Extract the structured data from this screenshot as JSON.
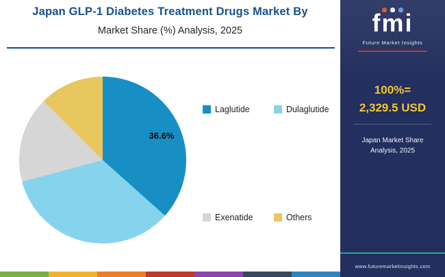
{
  "header": {
    "title_line1": "Japan GLP-1 Diabetes Treatment Drugs Market By",
    "title_line2": "Market Share (%) Analysis, 2025"
  },
  "chart_data": {
    "type": "pie",
    "title": "Japan GLP-1 Diabetes Treatment Drugs Market By Market Share (%) Analysis, 2025",
    "slices": [
      {
        "label": "Laglutide",
        "value": 36.6,
        "color": "#188fc4",
        "value_label": "36.6%"
      },
      {
        "label": "Dulaglutide",
        "value": 34.2,
        "color": "#86d3ee",
        "value_label": ""
      },
      {
        "label": "Exenatide",
        "value": 16.7,
        "color": "#d6d6d6",
        "value_label": ""
      },
      {
        "label": "Others",
        "value": 12.5,
        "color": "#e9c75f",
        "value_label": ""
      }
    ],
    "start_angle_deg": 0,
    "direction": "clockwise",
    "legend_position": "right",
    "shown_data_labels": [
      "36.6%"
    ]
  },
  "sidebar": {
    "logo_text": "fmi",
    "logo_subtitle": "Future Market Insights",
    "stat_line1": "100%=",
    "stat_line2": "2,329.5 USD",
    "caption_line1": "Japan Market Share",
    "caption_line2": "Analysis, 2025",
    "footer_url": "www.futuremarketinsights.com",
    "bg_color": "#232f5e",
    "accent_yellow": "#f6c62d",
    "accent_red": "#c0392b",
    "accent_teal": "#2fa39a"
  },
  "colors": {
    "title_blue": "#15518f",
    "rule_blue": "#1b4a8a",
    "stripe": [
      "#76b043",
      "#f3b229",
      "#ef7d23",
      "#c0392b",
      "#8e44ad",
      "#34495e",
      "#2e86c1"
    ]
  }
}
